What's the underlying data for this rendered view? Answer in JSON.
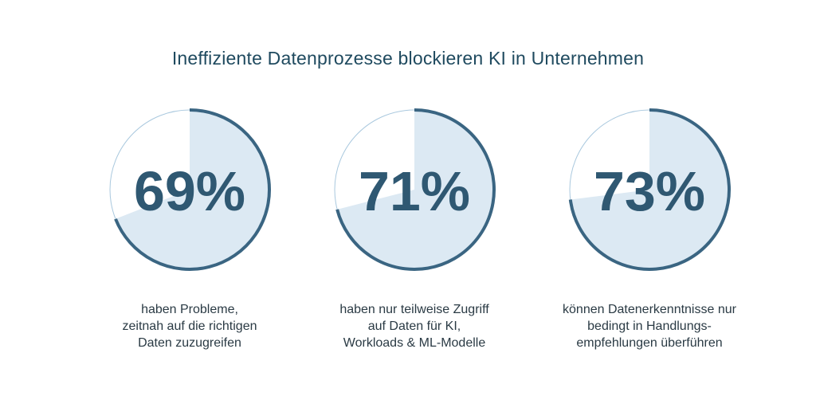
{
  "colors": {
    "title": "#1f4a5f",
    "number": "#2f5872",
    "fill": "#dce9f3",
    "arc": "#3a6582",
    "ring": "#a9c8de",
    "text": "#2a3a44"
  },
  "chart_data": {
    "type": "pie",
    "title": "Ineffiziente Datenprozesse blockieren KI in Unternehmen",
    "items": [
      {
        "value": 69,
        "label": "69%",
        "caption": [
          "haben Probleme,",
          "zeitnah auf die richtigen",
          "Daten zuzugreifen"
        ]
      },
      {
        "value": 71,
        "label": "71%",
        "caption": [
          "haben nur teilweise Zugriff",
          "auf Daten für KI,",
          "Workloads & ML-Modelle"
        ]
      },
      {
        "value": 73,
        "label": "73%",
        "caption": [
          "können Datenerkenntnisse nur",
          "bedingt in Handlungs-",
          "empfehlungen überführen"
        ]
      }
    ]
  }
}
